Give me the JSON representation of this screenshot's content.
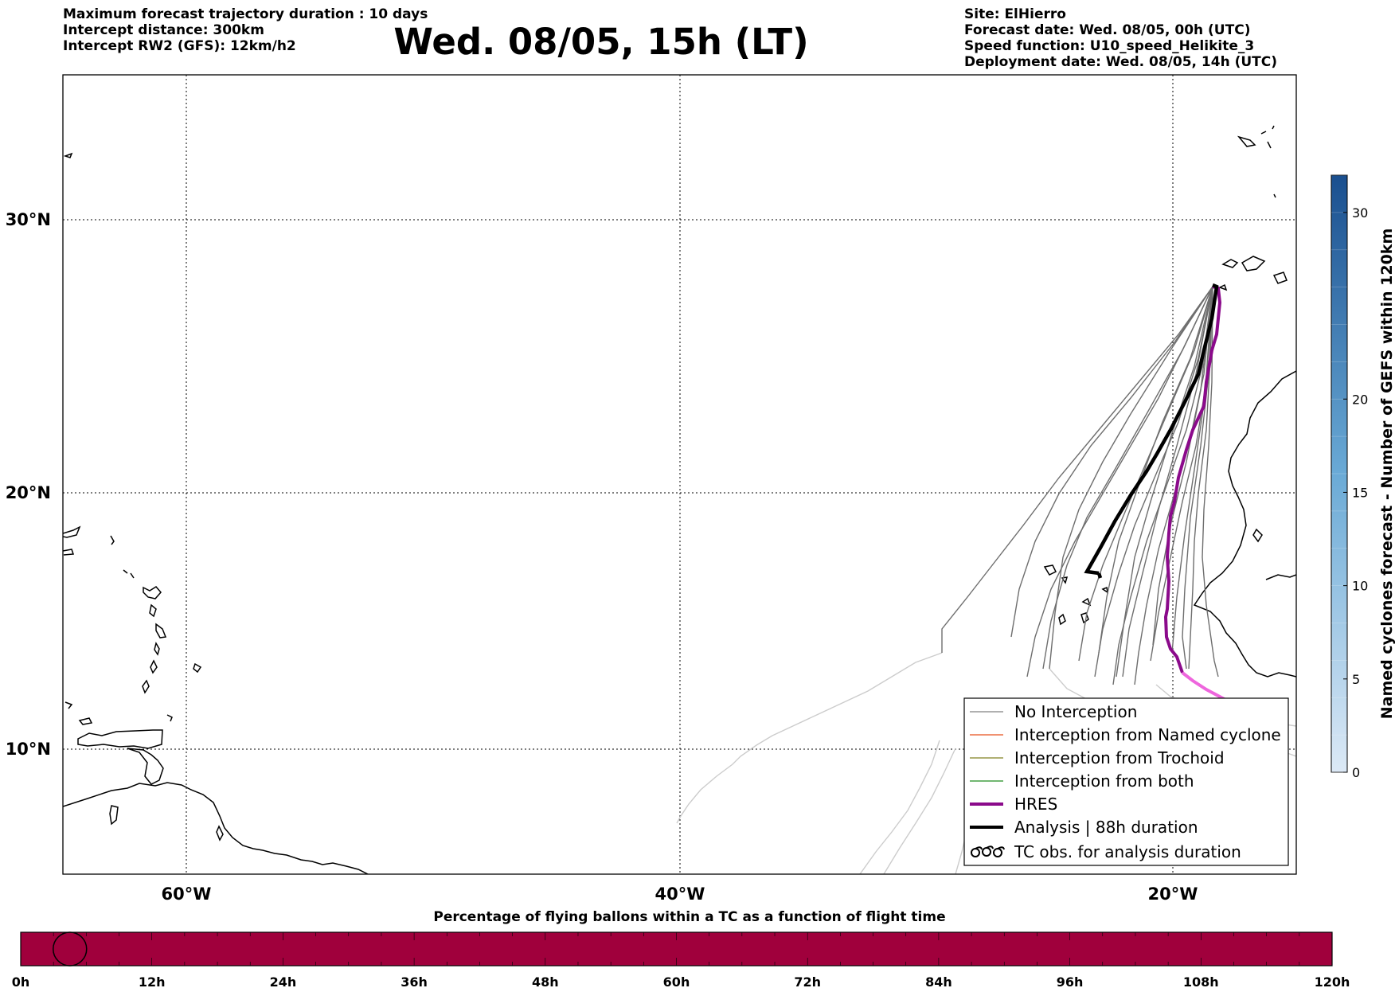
{
  "header": {
    "left_lines": [
      "Maximum forecast trajectory duration : 10 days",
      "Intercept distance: 300km",
      "Intercept RW2 (GFS):  12km/h2"
    ],
    "title": "Wed. 08/05, 15h (LT)",
    "right_lines": [
      "Site: ElHierro",
      "Forecast date: Wed. 08/05, 00h (UTC)",
      "Speed function: U10_speed_Helikite_3",
      "Deployment date: Wed. 08/05, 14h (UTC)"
    ]
  },
  "map": {
    "lon_labels": [
      "60°W",
      "40°W",
      "20°W"
    ],
    "lat_labels": [
      "30°N",
      "20°N",
      "10°N"
    ],
    "lon_range": [
      -65,
      -15
    ],
    "lat_range": [
      5,
      35
    ],
    "gridlines": true
  },
  "legend": {
    "items": [
      {
        "label": "No Interception",
        "color": "#808080",
        "style": "thin-line"
      },
      {
        "label": "Interception from Named cyclone",
        "color": "#e8501c",
        "style": "thin-line"
      },
      {
        "label": "Interception from Trochoid",
        "color": "#808020",
        "style": "thin-line"
      },
      {
        "label": "Interception from both",
        "color": "#1e8c1e",
        "style": "thin-line"
      },
      {
        "label": "HRES",
        "color": "#8b0a8b",
        "style": "thick-line"
      },
      {
        "label": "Analysis | 88h duration",
        "color": "#000000",
        "style": "thick-line"
      },
      {
        "label": "TC obs. for analysis duration",
        "color": "#000000",
        "style": "cyclone-symbols"
      }
    ],
    "position": "bottom-right"
  },
  "colorbar": {
    "label": "Named cyclones forecast - Number of GEFS within 120km",
    "ticks": [
      "0",
      "5",
      "10",
      "15",
      "20",
      "30"
    ],
    "range": [
      0,
      32
    ],
    "colors": [
      "#dce9f6",
      "#1a4f8f"
    ]
  },
  "timeline": {
    "title": "Percentage of flying ballons within a TC as a function of flight time",
    "ticks": [
      "0h",
      "12h",
      "24h",
      "36h",
      "48h",
      "60h",
      "72h",
      "84h",
      "96h",
      "108h",
      "120h"
    ],
    "bar_color": "#a0003c",
    "marker_hour": 4.5
  }
}
